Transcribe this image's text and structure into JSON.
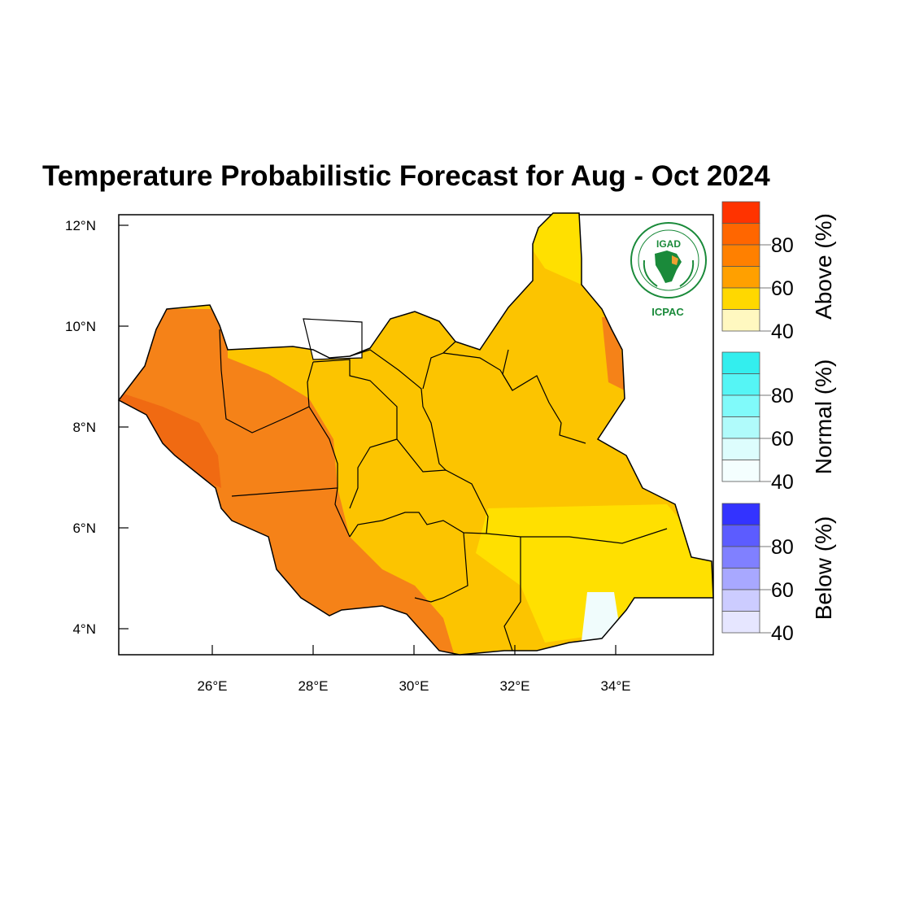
{
  "title": "Temperature Probabilistic Forecast for Aug - Oct 2024",
  "axes": {
    "x_ticks": [
      "26°E",
      "28°E",
      "30°E",
      "32°E",
      "34°E"
    ],
    "y_ticks": [
      "12°N",
      "10°N",
      "8°N",
      "6°N",
      "4°N"
    ]
  },
  "logo": {
    "top": "IGAD",
    "bottom": "ICPAC"
  },
  "colorbar": {
    "groups": [
      {
        "label": "Above (%)",
        "ticks": [
          "80",
          "60",
          "40"
        ],
        "colors": [
          "#ff3300",
          "#ff6600",
          "#ff8000",
          "#ffa000",
          "#ffd800",
          "#fff8c0"
        ]
      },
      {
        "label": "Normal (%)",
        "ticks": [
          "80",
          "60",
          "40"
        ],
        "colors": [
          "#33eeee",
          "#55f5f5",
          "#80fafa",
          "#b0fbfb",
          "#ddfdfd",
          "#f4fefe"
        ]
      },
      {
        "label": "Below (%)",
        "ticks": [
          "80",
          "60",
          "40"
        ],
        "colors": [
          "#3333ff",
          "#5c5cff",
          "#8080ff",
          "#a8a8ff",
          "#ccccff",
          "#e6e6ff"
        ]
      }
    ]
  },
  "map_colors": {
    "orange_dark": "#f06a12",
    "orange": "#f58218",
    "amber": "#fcc400",
    "yellow": "#ffe000",
    "light_cyan": "#f0fcfc",
    "white": "#ffffff"
  }
}
